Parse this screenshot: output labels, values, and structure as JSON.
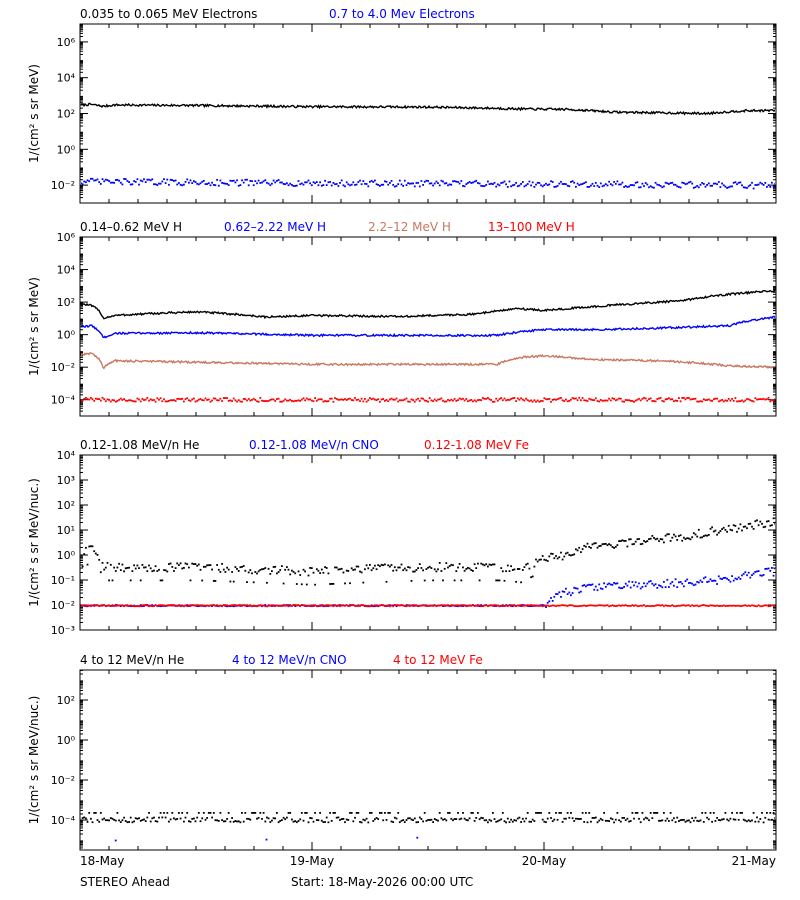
{
  "colors": {
    "black": "#000000",
    "blue": "#0000ff",
    "tan": "#c87860",
    "red": "#ff0000"
  },
  "footer": {
    "left_label": "STEREO Ahead",
    "start_label": "Start: 18-May-2026 00:00 UTC"
  },
  "x_axis": {
    "tick_labels": [
      "18-May",
      "19-May",
      "20-May",
      "21-May"
    ],
    "tick_values": [
      0,
      1,
      2,
      3
    ],
    "xlim": [
      0,
      3
    ]
  },
  "chart_data": [
    {
      "type": "line",
      "ylabel": "1/(cm² s sr MeV)",
      "yscale": "log",
      "ylim_exp": [
        -3,
        7
      ],
      "major_ticks_exp": [
        -2,
        0,
        2,
        4,
        6
      ],
      "tick_labels": [
        "10⁻²",
        "10⁰",
        "10²",
        "10⁴",
        "10⁶"
      ],
      "legend": [
        {
          "text": "0.035 to 0.065 MeV Electrons",
          "color": "#000000"
        },
        {
          "text": "0.7 to 4.0 Mev Electrons",
          "color": "#0000ff"
        }
      ],
      "series": [
        {
          "name": "0.035 to 0.065 MeV Electrons",
          "style": "line",
          "color": "#000000",
          "x": [
            0,
            0.05,
            0.1,
            0.15,
            0.5,
            1.0,
            1.5,
            1.75,
            1.9,
            2.1,
            2.3,
            2.5,
            2.7,
            2.85,
            3.0
          ],
          "y": [
            300,
            320,
            250,
            300,
            280,
            240,
            230,
            200,
            180,
            170,
            120,
            110,
            100,
            140,
            150
          ]
        },
        {
          "name": "0.7 to 4.0 Mev Electrons",
          "style": "dots",
          "color": "#0000ff",
          "x": [
            0,
            1.0,
            2.0,
            3.0
          ],
          "y": [
            0.015,
            0.012,
            0.011,
            0.009
          ]
        }
      ]
    },
    {
      "type": "line",
      "ylabel": "1/(cm² s sr MeV)",
      "yscale": "log",
      "ylim_exp": [
        -5,
        6
      ],
      "major_ticks_exp": [
        -4,
        -2,
        0,
        2,
        4,
        6
      ],
      "tick_labels": [
        "10⁻⁴",
        "10⁻²",
        "10⁰",
        "10²",
        "10⁴",
        "10⁶"
      ],
      "legend": [
        {
          "text": "0.14–0.62 MeV H",
          "color": "#000000"
        },
        {
          "text": "0.62–2.22 MeV H",
          "color": "#0000ff"
        },
        {
          "text": "2.2–12 MeV H",
          "color": "#c87860"
        },
        {
          "text": "13–100 MeV H",
          "color": "#ff0000"
        }
      ],
      "series": [
        {
          "name": "0.14–0.62 MeV H",
          "style": "line",
          "color": "#000000",
          "x": [
            0,
            0.05,
            0.1,
            0.15,
            0.5,
            0.8,
            1.0,
            1.4,
            1.7,
            1.9,
            2.0,
            2.2,
            2.4,
            2.6,
            2.8,
            3.0
          ],
          "y": [
            80,
            60,
            10,
            15,
            25,
            12,
            15,
            13,
            18,
            40,
            30,
            50,
            80,
            120,
            300,
            500
          ]
        },
        {
          "name": "0.62–2.22 MeV H",
          "style": "line",
          "color": "#0000ff",
          "x": [
            0,
            0.05,
            0.1,
            0.15,
            0.5,
            1.0,
            1.5,
            1.8,
            1.9,
            2.0,
            2.2,
            2.5,
            2.8,
            3.0
          ],
          "y": [
            3,
            3.5,
            0.6,
            1.2,
            1.3,
            0.9,
            0.9,
            0.9,
            1.5,
            2.0,
            2.0,
            2.5,
            3.5,
            12
          ]
        },
        {
          "name": "2.2–12 MeV H",
          "style": "line",
          "color": "#c87860",
          "x": [
            0,
            0.05,
            0.1,
            0.15,
            0.5,
            1.0,
            1.5,
            1.8,
            1.9,
            2.0,
            2.2,
            2.5,
            2.8,
            3.0
          ],
          "y": [
            0.06,
            0.07,
            0.008,
            0.025,
            0.02,
            0.015,
            0.015,
            0.015,
            0.04,
            0.05,
            0.03,
            0.025,
            0.012,
            0.01
          ]
        },
        {
          "name": "13–100 MeV H",
          "style": "dots",
          "color": "#ff0000",
          "x": [
            0,
            3.0
          ],
          "y": [
            0.0001,
            0.0001
          ]
        }
      ]
    },
    {
      "type": "scatter",
      "ylabel": "1/(cm² s sr MeV/nuc.)",
      "yscale": "log",
      "ylim_exp": [
        -3,
        4
      ],
      "major_ticks_exp": [
        -3,
        -2,
        -1,
        0,
        1,
        2,
        3,
        4
      ],
      "tick_labels": [
        "10⁻³",
        "10⁻²",
        "10⁻¹",
        "10⁰",
        "10¹",
        "10²",
        "10³",
        "10⁴"
      ],
      "legend": [
        {
          "text": "0.12-1.08 MeV/n He",
          "color": "#000000"
        },
        {
          "text": "0.12-1.08 MeV/n CNO",
          "color": "#0000ff"
        },
        {
          "text": "0.12-1.08 MeV Fe",
          "color": "#ff0000"
        }
      ],
      "series": [
        {
          "name": "0.12-1.08 MeV/n He",
          "style": "dots",
          "color": "#000000",
          "x": [
            0,
            0.05,
            0.1,
            0.5,
            1.0,
            1.5,
            1.8,
            1.9,
            2.1,
            2.2,
            2.4,
            2.6,
            2.8,
            3.0
          ],
          "y": [
            1.0,
            1.5,
            0.3,
            0.3,
            0.2,
            0.3,
            0.3,
            0.25,
            1.0,
            2.0,
            3.0,
            5.0,
            10,
            20
          ]
        },
        {
          "name": "0.12-1.08 MeV/n CNO",
          "style": "dots",
          "color": "#0000ff",
          "x": [
            0,
            2.0,
            2.2,
            2.5,
            2.8,
            3.0
          ],
          "y": [
            0.01,
            0.01,
            0.05,
            0.06,
            0.1,
            0.2
          ]
        },
        {
          "name": "0.12-1.08 MeV Fe",
          "style": "dots",
          "color": "#ff0000",
          "x": [
            0,
            3.0
          ],
          "y": [
            0.01,
            0.01
          ]
        }
      ]
    },
    {
      "type": "scatter",
      "ylabel": "1/(cm² s sr MeV/nuc.)",
      "yscale": "log",
      "ylim_exp": [
        -5.5,
        3.5
      ],
      "major_ticks_exp": [
        -4,
        -2,
        0,
        2
      ],
      "tick_labels": [
        "10⁻⁴",
        "10⁻²",
        "10⁰",
        "10²"
      ],
      "legend": [
        {
          "text": "4 to 12 MeV/n He",
          "color": "#000000"
        },
        {
          "text": "4 to 12 MeV/n CNO",
          "color": "#0000ff"
        },
        {
          "text": "4 to 12 MeV Fe",
          "color": "#ff0000"
        }
      ],
      "series": [
        {
          "name": "4 to 12 MeV/n He",
          "style": "dots",
          "color": "#000000",
          "x": [
            0,
            3.0
          ],
          "y": [
            0.0001,
            0.0001
          ]
        },
        {
          "name": "4 to 12 MeV/n CNO",
          "style": "dots",
          "color": "#0000ff",
          "x": [
            0.15,
            1.45
          ],
          "y": [
            1e-05,
            1e-05
          ]
        }
      ]
    }
  ]
}
